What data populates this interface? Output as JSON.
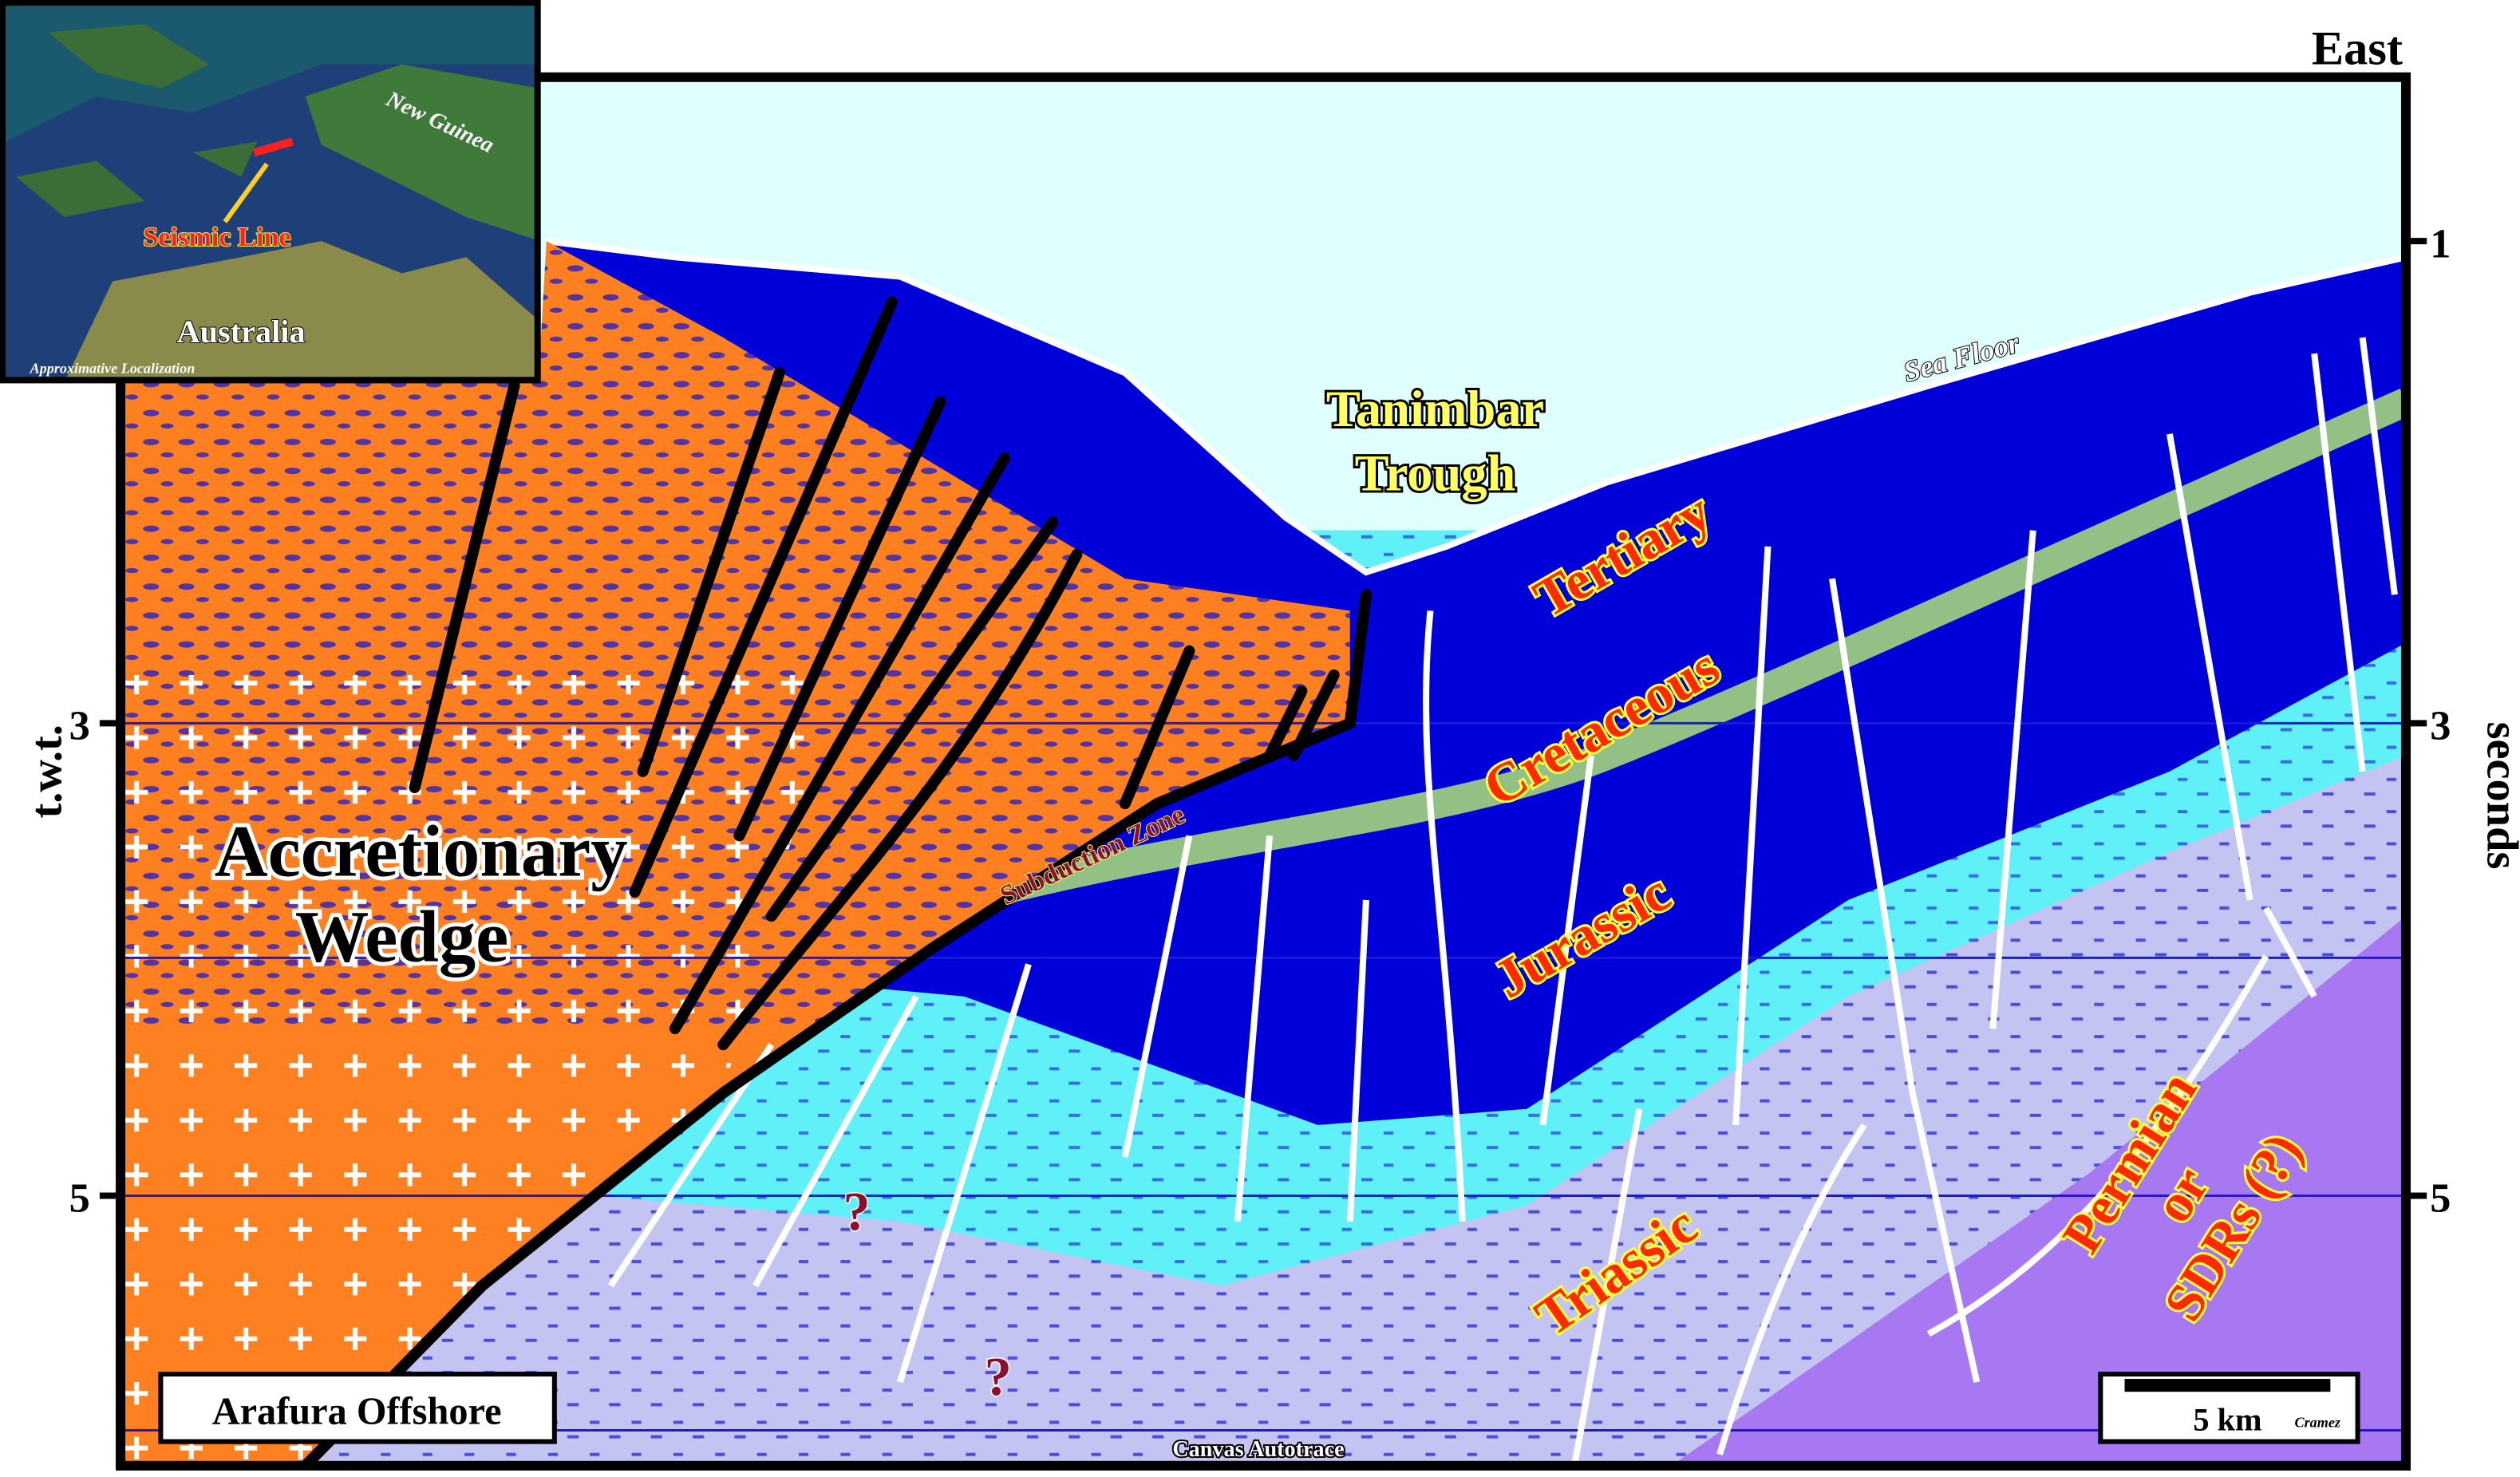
{
  "header": {
    "direction": "East"
  },
  "axes": {
    "left_label": "t.w.t.",
    "right_label": "seconds",
    "left_ticks": [
      3,
      5
    ],
    "right_ticks": [
      1,
      3,
      5
    ]
  },
  "labels": {
    "trough": [
      "Tanimbar",
      "Trough"
    ],
    "sea_floor": "Sea Floor",
    "tertiary": "Tertiary",
    "cretaceous": "Cretaceous",
    "jurassic": "Jurassic",
    "triassic": "Triassic",
    "permian": [
      "Permian",
      "or",
      "SDRs (?)"
    ],
    "wedge": [
      "Accretionary",
      "Wedge"
    ],
    "subduction": "Subduction Zone",
    "unknown": [
      "?",
      "?"
    ]
  },
  "footer": {
    "location": "Arafura Offshore",
    "scale": "5 km",
    "author": "Cramez",
    "software": "Canvas Autotrace"
  },
  "inset": {
    "region": "New Guinea",
    "marker": "Seismic Line",
    "continent": "Australia",
    "caption": "Approximative Localization"
  }
}
